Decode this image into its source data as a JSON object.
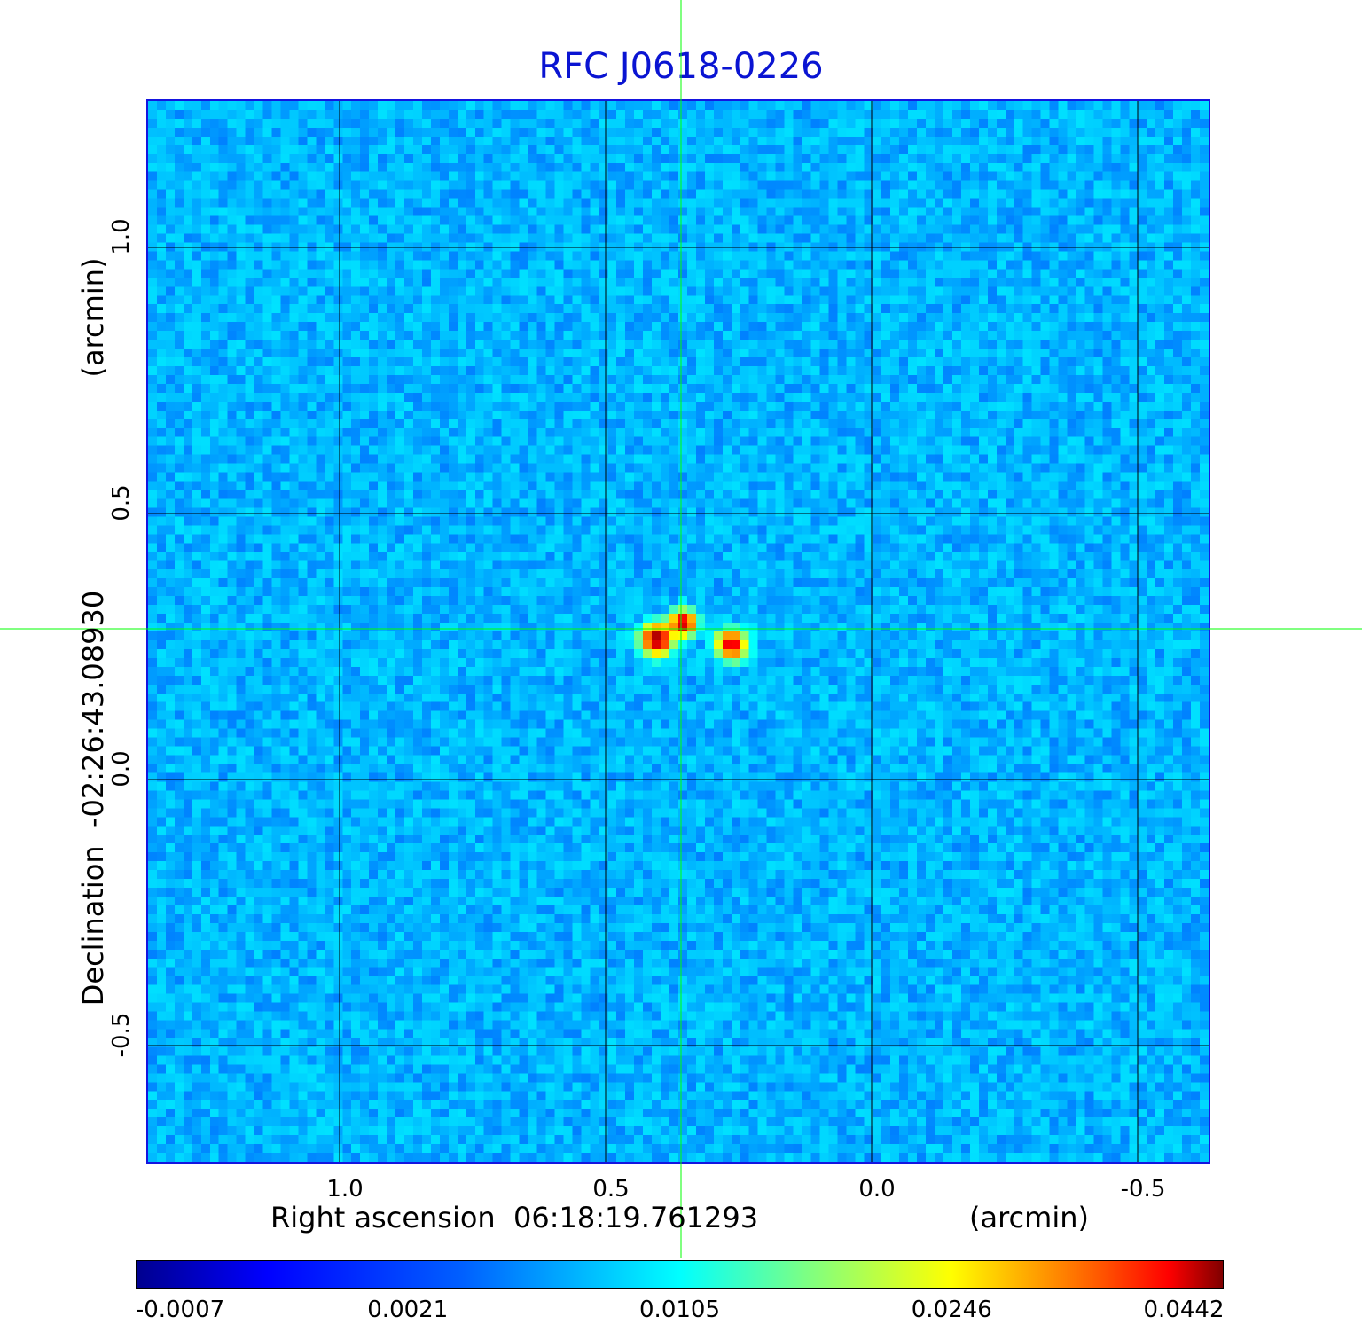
{
  "chart_data": {
    "type": "heatmap",
    "title": "RFC J0618-0226",
    "xlabel": "Right ascension  06:18:19.761293",
    "xunit": "(arcmin)",
    "ylabel": "Declination  -02:26:43.08930",
    "yunit": "(arcmin)",
    "x_ticks": [
      "1.0",
      "0.5",
      "0.0",
      "-0.5"
    ],
    "y_ticks": [
      "1.0",
      "0.5",
      "0.0",
      "-0.5"
    ],
    "x_tick_values": [
      1.0,
      0.5,
      0.0,
      -0.5
    ],
    "y_tick_values": [
      1.0,
      0.5,
      0.0,
      -0.5
    ],
    "xlim": [
      1.36,
      -0.64
    ],
    "ylim": [
      -0.725,
      1.275
    ],
    "grid": true,
    "colormap": "jet",
    "colorbar_ticks": [
      "-0.0007",
      "0.0021",
      "0.0105",
      "0.0246",
      "0.0442"
    ],
    "colorbar_range": [
      -0.0007,
      0.0442
    ],
    "background_level": 0.0015,
    "sources": [
      {
        "ra_offset": 0.4,
        "dec_offset": 0.26,
        "peak": 0.0442,
        "sigma": 0.018
      },
      {
        "ra_offset": 0.35,
        "dec_offset": 0.29,
        "peak": 0.042,
        "sigma": 0.015
      },
      {
        "ra_offset": 0.26,
        "dec_offset": 0.25,
        "peak": 0.039,
        "sigma": 0.017
      }
    ],
    "crosshair": {
      "ra_offset": 0.355,
      "dec_offset": 0.28,
      "color": "#00ff00"
    }
  }
}
